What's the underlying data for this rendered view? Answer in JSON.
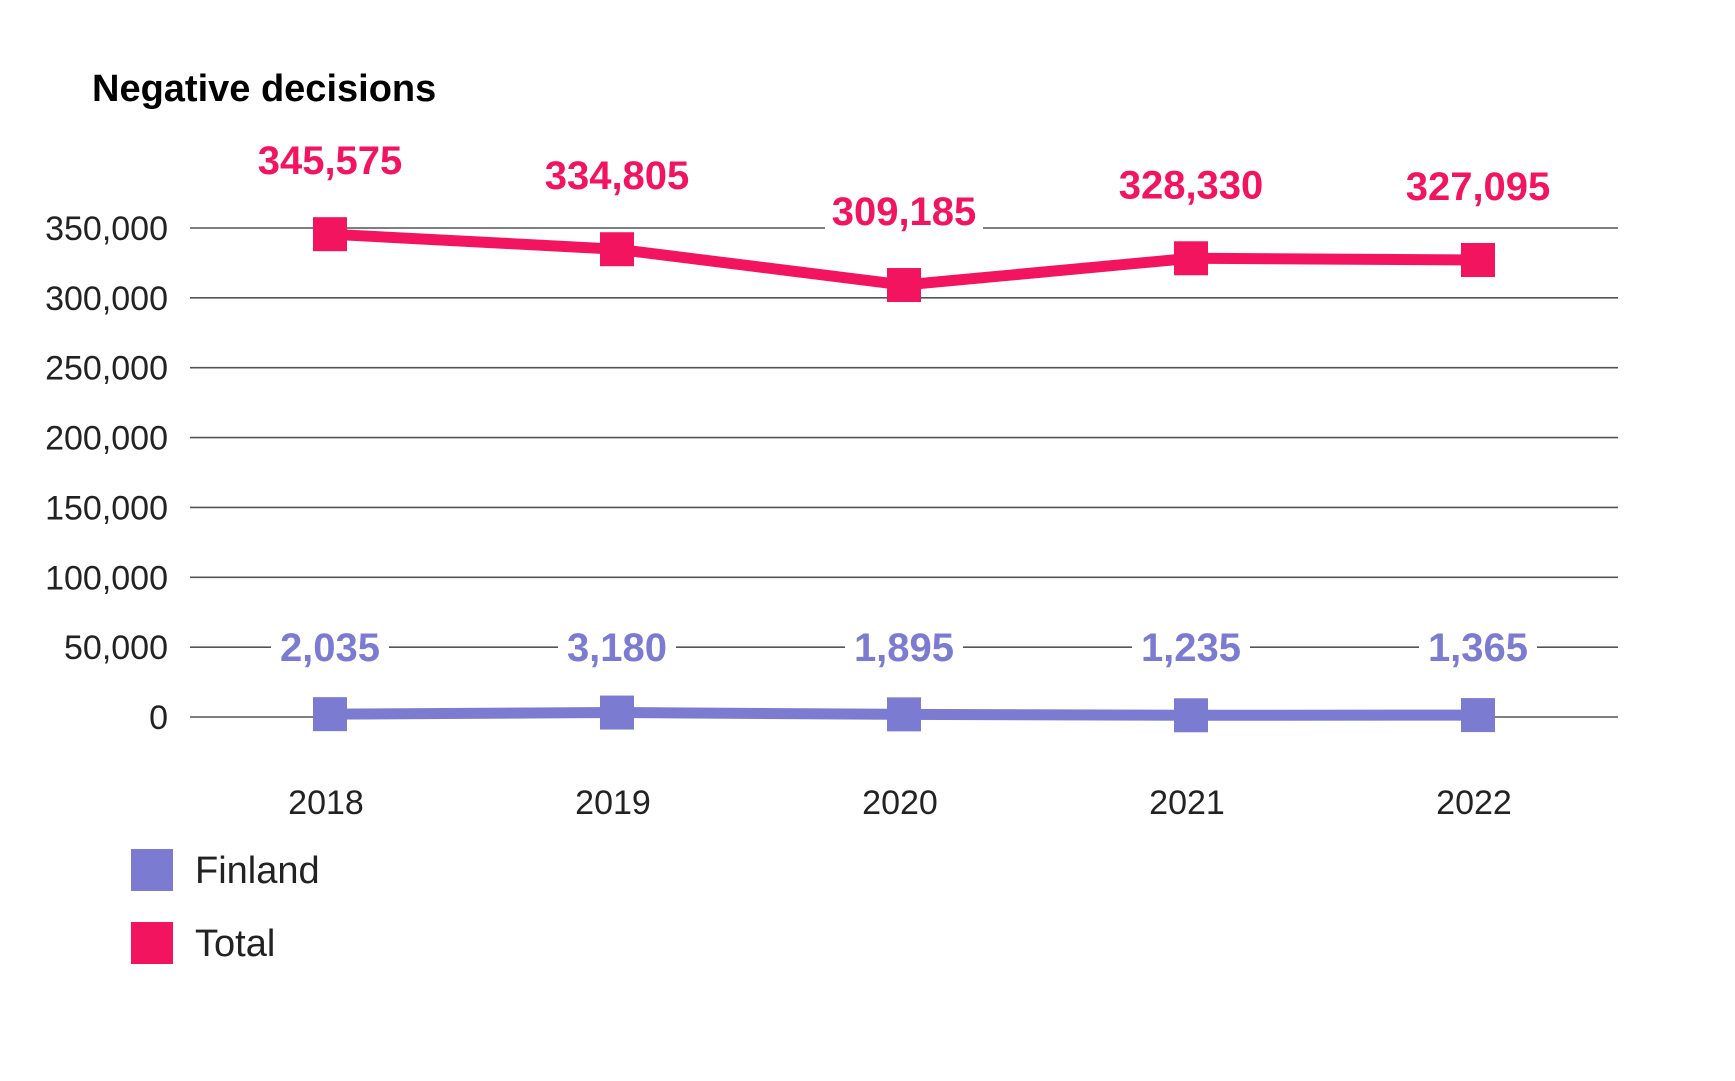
{
  "chart_data": {
    "type": "line",
    "title": "Negative decisions",
    "xlabel": "",
    "ylabel": "",
    "categories": [
      "2018",
      "2019",
      "2020",
      "2021",
      "2022"
    ],
    "ylim": [
      0,
      350000
    ],
    "yticks": [
      0,
      50000,
      100000,
      150000,
      200000,
      250000,
      300000,
      350000
    ],
    "ytick_labels": [
      "0",
      "50,000",
      "100,000",
      "150,000",
      "200,000",
      "250,000",
      "300,000",
      "350,000"
    ],
    "grid": true,
    "legend_position": "bottom-left",
    "series": [
      {
        "name": "Finland",
        "color": "#7b7bd1",
        "values": [
          2035,
          3180,
          1895,
          1235,
          1365
        ],
        "labels": [
          "2,035",
          "3,180",
          "1,895",
          "1,235",
          "1,365"
        ]
      },
      {
        "name": "Total",
        "color": "#f3145f",
        "values": [
          345575,
          334805,
          309185,
          328330,
          327095
        ],
        "labels": [
          "345,575",
          "334,805",
          "309,185",
          "328,330",
          "327,095"
        ]
      }
    ]
  }
}
